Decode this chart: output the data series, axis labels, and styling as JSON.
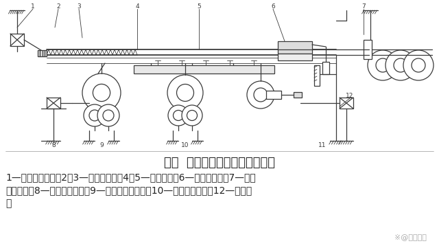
{
  "title": "图二  步进式冷床工作原理示意图",
  "caption_line1": "1—输入辊道装置，2、3—上卶鈢装置，4、5—冷床本体，6—成排链装置，7—输出",
  "caption_line2": "辊道装置，8—拨料装置电机，9—拨料装置减速机，10—动齿条减速机，12—移鈢装",
  "caption_line3": "置",
  "watermark": "※@让云轴承",
  "bg_color": "#ffffff",
  "diagram_color": "#3a3a3a",
  "text_color": "#222222",
  "title_fontsize": 13,
  "caption_fontsize": 10,
  "watermark_fontsize": 8,
  "fig_width": 6.4,
  "fig_height": 3.61
}
